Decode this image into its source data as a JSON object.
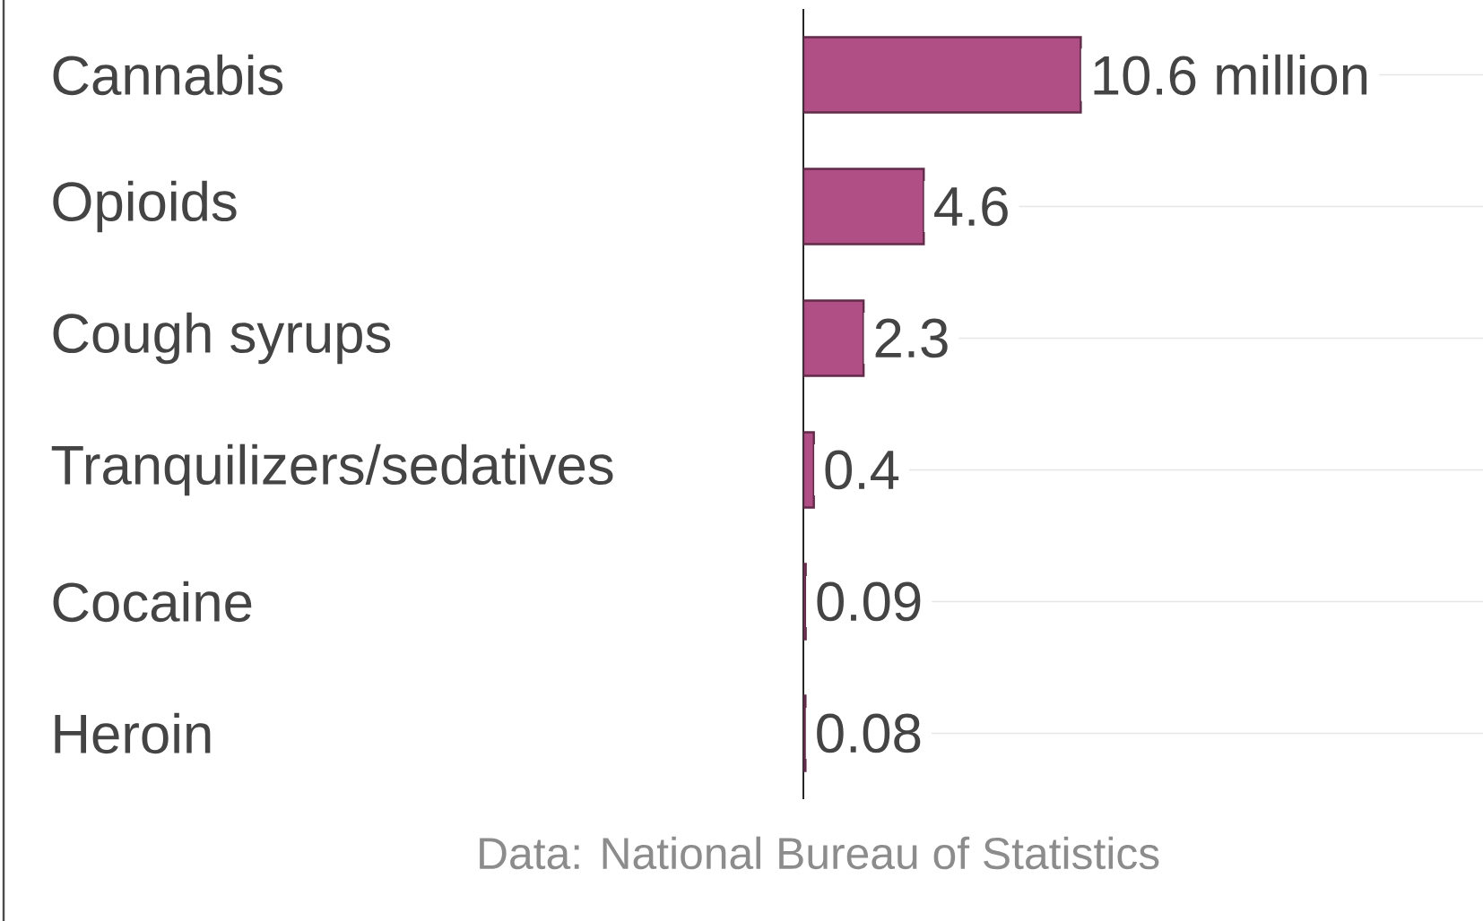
{
  "chart_data": {
    "type": "bar",
    "orientation": "horizontal",
    "categories": [
      "Cannabis",
      "Opioids",
      "Cough syrups",
      "Tranquilizers/sedatives",
      "Cocaine",
      "Heroin"
    ],
    "values": [
      10.6,
      4.6,
      2.3,
      0.4,
      0.09,
      0.08
    ],
    "value_labels": [
      "10.6 million",
      "4.6",
      "2.3",
      "0.4",
      "0.09",
      "0.08"
    ],
    "color": "#b04f86",
    "grid": "y",
    "tick_labels": "y",
    "annotations": [
      "Data: National Bureau of Statistics"
    ]
  }
}
